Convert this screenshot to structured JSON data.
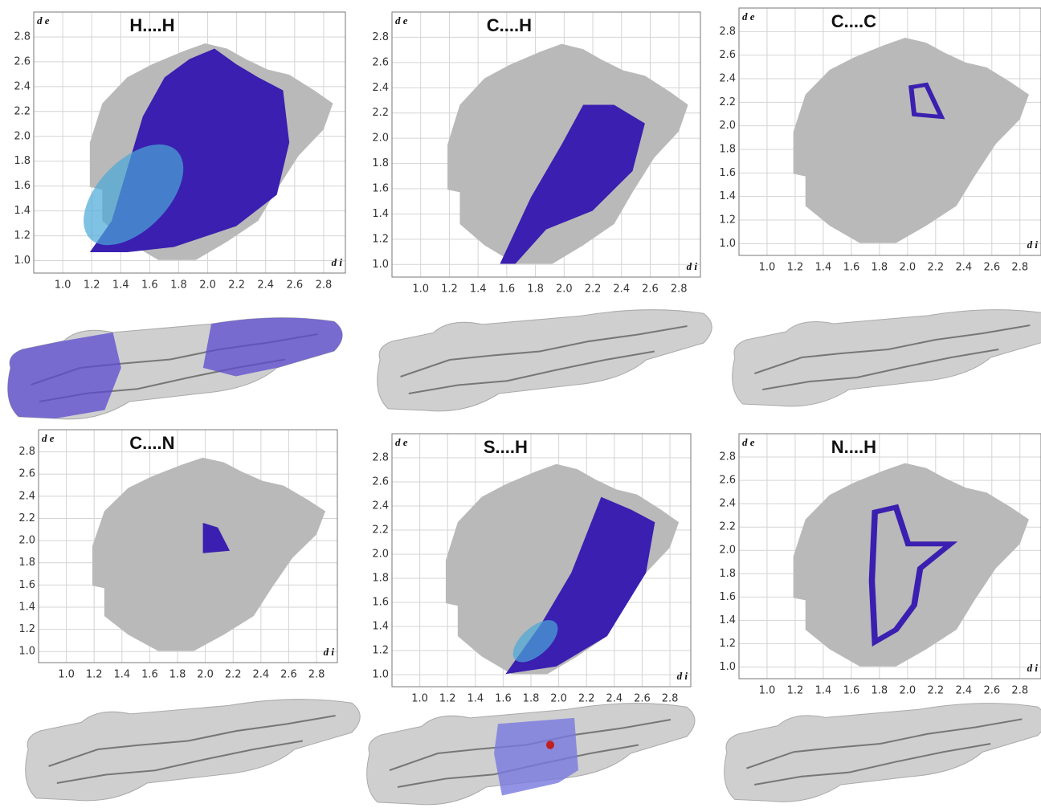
{
  "chart_data": [
    {
      "type": "scatter",
      "title": "H....H",
      "xlabel": "d i",
      "ylabel": "d e",
      "xlim": [
        0.8,
        2.95
      ],
      "ylim": [
        0.9,
        3.0
      ],
      "xticks": [
        {
          "value": 1,
          "label": "1.0"
        },
        1.2,
        1.4,
        1.6,
        1.8,
        {
          "value": 2,
          "label": "2.0"
        },
        2.2,
        2.4,
        2.6,
        2.8
      ],
      "yticks": [
        {
          "value": 1,
          "label": "1.0"
        },
        1.2,
        1.4,
        1.6,
        1.8,
        {
          "value": 2,
          "label": "2.0"
        },
        2.2,
        2.4,
        2.6,
        2.8
      ],
      "grid": true
    },
    {
      "type": "scatter",
      "title": "C....H",
      "xlabel": "d i",
      "ylabel": "d e",
      "xlim": [
        0.8,
        2.95
      ],
      "ylim": [
        0.9,
        3.0
      ],
      "xticks": [
        {
          "value": 1,
          "label": "1.0"
        },
        1.2,
        1.4,
        1.6,
        1.8,
        {
          "value": 2,
          "label": "2.0"
        },
        2.2,
        2.4,
        2.6,
        2.8
      ],
      "yticks": [
        {
          "value": 1,
          "label": "1.0"
        },
        1.2,
        1.4,
        1.6,
        1.8,
        {
          "value": 2,
          "label": "2.0"
        },
        2.2,
        2.4,
        2.6,
        2.8
      ],
      "grid": true
    },
    {
      "type": "scatter",
      "title": "C....C",
      "xlabel": "d i",
      "ylabel": "d e",
      "xlim": [
        0.8,
        2.95
      ],
      "ylim": [
        0.9,
        3.0
      ],
      "xticks": [
        {
          "value": 1,
          "label": "1.0"
        },
        1.2,
        1.4,
        1.6,
        1.8,
        {
          "value": 2,
          "label": "2.0"
        },
        2.2,
        2.4,
        2.6,
        2.8
      ],
      "yticks": [
        {
          "value": 1,
          "label": "1.0"
        },
        1.2,
        1.4,
        1.6,
        1.8,
        {
          "value": 2,
          "label": "2.0"
        },
        2.2,
        2.4,
        2.6,
        2.8
      ],
      "grid": true
    },
    {
      "type": "scatter",
      "title": "C....N",
      "xlabel": "d i",
      "ylabel": "d e",
      "xlim": [
        0.8,
        2.95
      ],
      "ylim": [
        0.9,
        3.0
      ],
      "xticks": [
        {
          "value": 1,
          "label": "1.0"
        },
        1.2,
        1.4,
        1.6,
        1.8,
        {
          "value": 2,
          "label": "2.0"
        },
        2.2,
        2.4,
        2.6,
        2.8
      ],
      "yticks": [
        {
          "value": 1,
          "label": "1.0"
        },
        1.2,
        1.4,
        1.6,
        1.8,
        {
          "value": 2,
          "label": "2.0"
        },
        2.2,
        2.4,
        2.6,
        2.8
      ],
      "grid": true
    },
    {
      "type": "scatter",
      "title": "S....H",
      "xlabel": "d i",
      "ylabel": "d e",
      "xlim": [
        0.8,
        2.95
      ],
      "ylim": [
        0.9,
        3.0
      ],
      "xticks": [
        {
          "value": 1,
          "label": "1.0"
        },
        1.2,
        1.4,
        1.6,
        1.8,
        {
          "value": 2,
          "label": "2.0"
        },
        2.2,
        2.4,
        2.6,
        2.8
      ],
      "yticks": [
        {
          "value": 1,
          "label": "1.0"
        },
        1.2,
        1.4,
        1.6,
        1.8,
        {
          "value": 2,
          "label": "2.0"
        },
        2.2,
        2.4,
        2.6,
        2.8
      ],
      "grid": true
    },
    {
      "type": "scatter",
      "title": "N....H",
      "xlabel": "d i",
      "ylabel": "d e",
      "xlim": [
        0.8,
        2.95
      ],
      "ylim": [
        0.9,
        3.0
      ],
      "xticks": [
        {
          "value": 1,
          "label": "1.0"
        },
        1.2,
        1.4,
        1.6,
        1.8,
        {
          "value": 2,
          "label": "2.0"
        },
        2.2,
        2.4,
        2.6,
        2.8
      ],
      "yticks": [
        {
          "value": 1,
          "label": "1.0"
        },
        1.2,
        1.4,
        1.6,
        1.8,
        {
          "value": 2,
          "label": "2.0"
        },
        2.2,
        2.4,
        2.6,
        2.8
      ],
      "grid": true
    }
  ]
}
